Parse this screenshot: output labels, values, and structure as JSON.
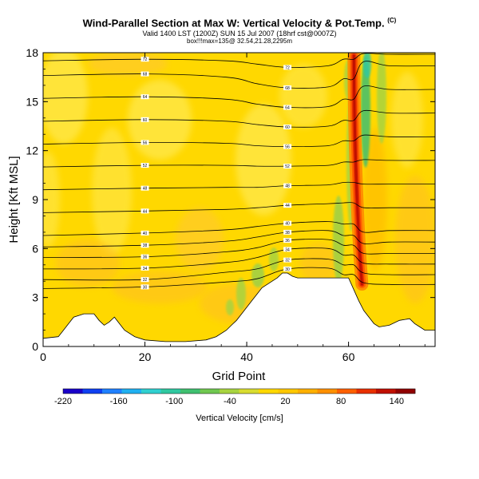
{
  "header": {
    "title_main": "Wind-Parallel Section at Max W: Vertical Velocity & Pot.Temp.",
    "title_units": "(C)",
    "valid_line": "Valid 1400 LST (1200Z) SUN 15 Jul 2007 (18hrf cst@0007Z)",
    "box_line": "box!!!max=135@ 32.54,21.28,2295m"
  },
  "chart_data": {
    "type": "heatmap",
    "title": "Wind-Parallel Section at Max W: Vertical Velocity & Pot.Temp.",
    "xlabel": "Grid Point",
    "ylabel": "Height [Kft MSL]",
    "xlim": [
      0,
      77
    ],
    "ylim": [
      0,
      18
    ],
    "x_ticks": [
      0,
      20,
      40,
      60
    ],
    "y_ticks": [
      0,
      3,
      6,
      9,
      12,
      15,
      18
    ],
    "field_max": 135,
    "updraft_core_x": 62,
    "background_range": [
      0,
      40
    ],
    "terrain_profile": [
      [
        0,
        0.5
      ],
      [
        3,
        0.6
      ],
      [
        4,
        1.0
      ],
      [
        5,
        1.4
      ],
      [
        6,
        1.8
      ],
      [
        7,
        1.9
      ],
      [
        8,
        2.0
      ],
      [
        10,
        2.0
      ],
      [
        11,
        1.6
      ],
      [
        12,
        1.3
      ],
      [
        13,
        1.5
      ],
      [
        14,
        1.8
      ],
      [
        15,
        1.4
      ],
      [
        16,
        1.0
      ],
      [
        18,
        0.6
      ],
      [
        20,
        0.4
      ],
      [
        24,
        0.3
      ],
      [
        28,
        0.3
      ],
      [
        32,
        0.4
      ],
      [
        34,
        0.6
      ],
      [
        36,
        1.0
      ],
      [
        37,
        1.3
      ],
      [
        38,
        1.6
      ],
      [
        39,
        2.0
      ],
      [
        40,
        2.4
      ],
      [
        41,
        2.8
      ],
      [
        42,
        3.2
      ],
      [
        43,
        3.6
      ],
      [
        44,
        3.8
      ],
      [
        45,
        4.0
      ],
      [
        46,
        4.2
      ],
      [
        47,
        4.5
      ],
      [
        48,
        4.5
      ],
      [
        49,
        4.3
      ],
      [
        50,
        4.2
      ],
      [
        60,
        4.2
      ],
      [
        61,
        3.5
      ],
      [
        62,
        2.8
      ],
      [
        63,
        2.2
      ],
      [
        64,
        1.8
      ],
      [
        65,
        1.4
      ],
      [
        66,
        1.2
      ],
      [
        68,
        1.3
      ],
      [
        70,
        1.6
      ],
      [
        72,
        1.7
      ],
      [
        73,
        1.4
      ],
      [
        74,
        1.2
      ],
      [
        75,
        1.0
      ],
      [
        77,
        1.0
      ]
    ],
    "isentropes": [
      {
        "label": "30",
        "points": [
          [
            0,
            3.55
          ],
          [
            20,
            3.65
          ],
          [
            36,
            3.95
          ],
          [
            42,
            4.15
          ],
          [
            48,
            4.75
          ],
          [
            56,
            4.8
          ],
          [
            59,
            4.4
          ],
          [
            61,
            4.4
          ],
          [
            63,
            3.9
          ],
          [
            68,
            3.8
          ],
          [
            77,
            3.8
          ]
        ]
      },
      {
        "label": "32",
        "points": [
          [
            0,
            4.1
          ],
          [
            20,
            4.1
          ],
          [
            36,
            4.55
          ],
          [
            42,
            4.75
          ],
          [
            48,
            5.3
          ],
          [
            56,
            5.35
          ],
          [
            59,
            5.0
          ],
          [
            61,
            5.0
          ],
          [
            63,
            4.5
          ],
          [
            68,
            4.4
          ],
          [
            77,
            4.4
          ]
        ]
      },
      {
        "label": "34",
        "points": [
          [
            0,
            4.75
          ],
          [
            20,
            4.8
          ],
          [
            36,
            5.15
          ],
          [
            42,
            5.45
          ],
          [
            48,
            5.95
          ],
          [
            56,
            6.0
          ],
          [
            59,
            5.6
          ],
          [
            61,
            5.6
          ],
          [
            63,
            5.1
          ],
          [
            68,
            5.05
          ],
          [
            77,
            5.05
          ]
        ]
      },
      {
        "label": "36",
        "points": [
          [
            0,
            5.45
          ],
          [
            20,
            5.5
          ],
          [
            36,
            5.8
          ],
          [
            42,
            6.05
          ],
          [
            48,
            6.5
          ],
          [
            56,
            6.55
          ],
          [
            59,
            6.2
          ],
          [
            61,
            6.2
          ],
          [
            63,
            5.7
          ],
          [
            68,
            5.7
          ],
          [
            77,
            5.7
          ]
        ]
      },
      {
        "label": "38",
        "points": [
          [
            0,
            6.1
          ],
          [
            20,
            6.2
          ],
          [
            36,
            6.45
          ],
          [
            42,
            6.7
          ],
          [
            48,
            7.0
          ],
          [
            56,
            7.1
          ],
          [
            59,
            6.8
          ],
          [
            61,
            6.8
          ],
          [
            63,
            6.3
          ],
          [
            68,
            6.4
          ],
          [
            77,
            6.4
          ]
        ]
      },
      {
        "label": "40",
        "points": [
          [
            0,
            6.8
          ],
          [
            20,
            6.95
          ],
          [
            36,
            7.15
          ],
          [
            42,
            7.35
          ],
          [
            48,
            7.55
          ],
          [
            56,
            7.65
          ],
          [
            59,
            7.5
          ],
          [
            61,
            7.5
          ],
          [
            63,
            7.0
          ],
          [
            68,
            7.1
          ],
          [
            77,
            7.1
          ]
        ]
      },
      {
        "label": "44",
        "points": [
          [
            0,
            8.2
          ],
          [
            20,
            8.3
          ],
          [
            36,
            8.4
          ],
          [
            42,
            8.5
          ],
          [
            48,
            8.65
          ],
          [
            56,
            8.75
          ],
          [
            59,
            8.8
          ],
          [
            61,
            8.8
          ],
          [
            63,
            8.5
          ],
          [
            68,
            8.5
          ],
          [
            77,
            8.5
          ]
        ]
      },
      {
        "label": "48",
        "points": [
          [
            0,
            9.6
          ],
          [
            20,
            9.7
          ],
          [
            36,
            9.75
          ],
          [
            42,
            9.75
          ],
          [
            48,
            9.85
          ],
          [
            56,
            9.9
          ],
          [
            59,
            10.05
          ],
          [
            61,
            10.05
          ],
          [
            63,
            9.95
          ],
          [
            68,
            9.95
          ],
          [
            77,
            9.95
          ]
        ]
      },
      {
        "label": "52",
        "points": [
          [
            0,
            11.0
          ],
          [
            20,
            11.1
          ],
          [
            36,
            11.1
          ],
          [
            42,
            11.05
          ],
          [
            48,
            11.05
          ],
          [
            56,
            11.1
          ],
          [
            59,
            11.3
          ],
          [
            61,
            11.3
          ],
          [
            63,
            11.45
          ],
          [
            68,
            11.4
          ],
          [
            77,
            11.4
          ]
        ]
      },
      {
        "label": "56",
        "points": [
          [
            0,
            12.4
          ],
          [
            20,
            12.5
          ],
          [
            36,
            12.45
          ],
          [
            42,
            12.3
          ],
          [
            48,
            12.25
          ],
          [
            56,
            12.3
          ],
          [
            59,
            12.6
          ],
          [
            61,
            12.6
          ],
          [
            63,
            12.95
          ],
          [
            68,
            12.85
          ],
          [
            77,
            12.85
          ]
        ]
      },
      {
        "label": "60",
        "points": [
          [
            0,
            13.8
          ],
          [
            20,
            13.9
          ],
          [
            36,
            13.8
          ],
          [
            42,
            13.6
          ],
          [
            48,
            13.45
          ],
          [
            56,
            13.5
          ],
          [
            59,
            13.85
          ],
          [
            61,
            13.85
          ],
          [
            63,
            14.45
          ],
          [
            68,
            14.3
          ],
          [
            77,
            14.3
          ]
        ]
      },
      {
        "label": "64",
        "points": [
          [
            0,
            15.2
          ],
          [
            20,
            15.3
          ],
          [
            36,
            15.15
          ],
          [
            42,
            14.85
          ],
          [
            48,
            14.65
          ],
          [
            56,
            14.7
          ],
          [
            59,
            15.15
          ],
          [
            61,
            15.15
          ],
          [
            63,
            15.95
          ],
          [
            68,
            15.75
          ],
          [
            77,
            15.75
          ]
        ]
      },
      {
        "label": "68",
        "points": [
          [
            0,
            16.6
          ],
          [
            20,
            16.7
          ],
          [
            36,
            16.5
          ],
          [
            42,
            16.1
          ],
          [
            48,
            15.85
          ],
          [
            56,
            15.9
          ],
          [
            59,
            16.4
          ],
          [
            61,
            16.4
          ],
          [
            63,
            17.45
          ],
          [
            68,
            17.2
          ],
          [
            77,
            17.2
          ]
        ]
      },
      {
        "label": "72",
        "points": [
          [
            0,
            17.5
          ],
          [
            20,
            17.6
          ],
          [
            36,
            17.5
          ],
          [
            42,
            17.3
          ],
          [
            48,
            17.1
          ],
          [
            56,
            17.2
          ],
          [
            59,
            17.6
          ],
          [
            61,
            17.6
          ],
          [
            63,
            17.95
          ],
          [
            68,
            17.9
          ],
          [
            77,
            17.9
          ]
        ]
      }
    ],
    "colorbar": {
      "label": "Vertical Velocity [cm/s]",
      "min": -220,
      "max": 160,
      "tick_labels": [
        -220,
        -160,
        -100,
        -40,
        20,
        80,
        140
      ],
      "colors": [
        "#1a00c8",
        "#1040f0",
        "#2080ff",
        "#20b0f0",
        "#30d0d0",
        "#30c8a0",
        "#40c070",
        "#70c850",
        "#a8d440",
        "#d8dc30",
        "#ffd800",
        "#ffc800",
        "#ffb000",
        "#ff9000",
        "#ff6000",
        "#e83000",
        "#c01000",
        "#900000"
      ]
    }
  }
}
